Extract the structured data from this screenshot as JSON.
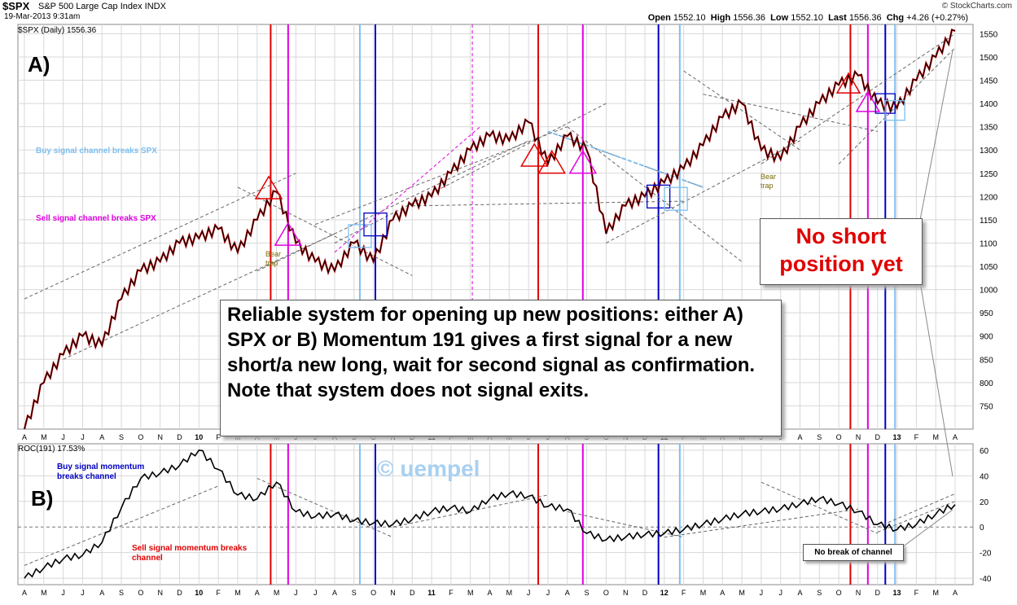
{
  "header": {
    "symbol": "$SPX",
    "description": "S&P 500 Large Cap Index  INDX",
    "date": "19-Mar-2013 9:31am",
    "open_label": "Open",
    "open": "1552.10",
    "high_label": "High",
    "high": "1556.36",
    "low_label": "Low",
    "low": "1552.10",
    "last_label": "Last",
    "last": "1556.36",
    "chg_label": "Chg",
    "chg": "+4.26 (+0.27%)",
    "brand": "© StockCharts.com"
  },
  "annotations": {
    "panel_a": "A)",
    "panel_b": "B)",
    "buy_channel": "Buy signal channel breaks SPX",
    "sell_channel": "Sell signal channel breaks SPX",
    "bear_trap_1": "Bear trap",
    "bear_trap_2": "Bear trap",
    "buy_momentum": "Buy signal momentum breaks channel",
    "sell_momentum": "Sell signal momentum breaks channel",
    "watermark": "© uempel",
    "main_box": "Reliable system for opening up new positions: either A) SPX or B) Momentum 191 gives a first signal for a new short/a new long, wait for second signal as confirmation. Note that system does not signal exits.",
    "short_box": "No short position yet",
    "no_break": "No break of channel"
  },
  "colors": {
    "red": "#e00000",
    "magenta": "#e000e0",
    "light_blue": "#7fbfef",
    "dark_blue": "#0000c0",
    "grid": "#d8d8d8",
    "price_up": "#000000",
    "price_down": "#c00000"
  },
  "chart_data": [
    {
      "type": "line",
      "title": "$SPX (Daily) 1556.36",
      "ylim": [
        700,
        1570
      ],
      "y_ticks": [
        750,
        800,
        850,
        900,
        950,
        1000,
        1050,
        1100,
        1150,
        1200,
        1250,
        1300,
        1350,
        1400,
        1450,
        1500,
        1550
      ],
      "x_labels": [
        "A",
        "M",
        "J",
        "J",
        "A",
        "S",
        "O",
        "N",
        "D",
        "10",
        "F",
        "M",
        "A",
        "M",
        "J",
        "J",
        "A",
        "S",
        "O",
        "N",
        "D",
        "11",
        "F",
        "M",
        "A",
        "M",
        "J",
        "J",
        "A",
        "S",
        "O",
        "N",
        "D",
        "12",
        "F",
        "M",
        "A",
        "M",
        "J",
        "J",
        "A",
        "S",
        "O",
        "N",
        "D",
        "13",
        "F",
        "M",
        "A"
      ],
      "series": [
        {
          "name": "$SPX",
          "x": [
            "2009-03",
            "2009-04",
            "2009-05",
            "2009-06",
            "2009-07",
            "2009-08",
            "2009-09",
            "2009-10",
            "2009-11",
            "2009-12",
            "2010-01",
            "2010-02",
            "2010-03",
            "2010-04",
            "2010-05",
            "2010-06",
            "2010-07",
            "2010-08",
            "2010-09",
            "2010-10",
            "2010-11",
            "2010-12",
            "2011-01",
            "2011-02",
            "2011-03",
            "2011-04",
            "2011-05",
            "2011-06",
            "2011-07",
            "2011-08",
            "2011-09",
            "2011-10",
            "2011-11",
            "2011-12",
            "2012-01",
            "2012-02",
            "2012-03",
            "2012-04",
            "2012-05",
            "2012-06",
            "2012-07",
            "2012-08",
            "2012-09",
            "2012-10",
            "2012-11",
            "2012-12",
            "2013-01",
            "2013-02",
            "2013-03"
          ],
          "values": [
            700,
            800,
            860,
            900,
            880,
            980,
            1040,
            1060,
            1100,
            1110,
            1130,
            1080,
            1150,
            1210,
            1100,
            1060,
            1040,
            1100,
            1060,
            1150,
            1180,
            1200,
            1250,
            1300,
            1330,
            1320,
            1360,
            1270,
            1330,
            1300,
            1120,
            1180,
            1200,
            1230,
            1260,
            1310,
            1370,
            1400,
            1300,
            1280,
            1350,
            1400,
            1440,
            1460,
            1400,
            1390,
            1450,
            1500,
            1556
          ]
        }
      ]
    },
    {
      "type": "line",
      "title": "ROC(191) 17.53%",
      "ylim": [
        -45,
        65
      ],
      "y_ticks": [
        -40,
        -20,
        0,
        20,
        40,
        60
      ],
      "series": [
        {
          "name": "ROC(191)",
          "x": [
            "2009-03",
            "2009-04",
            "2009-05",
            "2009-06",
            "2009-07",
            "2009-08",
            "2009-09",
            "2009-10",
            "2009-11",
            "2009-12",
            "2010-01",
            "2010-02",
            "2010-03",
            "2010-04",
            "2010-05",
            "2010-06",
            "2010-07",
            "2010-08",
            "2010-09",
            "2010-10",
            "2010-11",
            "2010-12",
            "2011-01",
            "2011-02",
            "2011-03",
            "2011-04",
            "2011-05",
            "2011-06",
            "2011-07",
            "2011-08",
            "2011-09",
            "2011-10",
            "2011-11",
            "2011-12",
            "2012-01",
            "2012-02",
            "2012-03",
            "2012-04",
            "2012-05",
            "2012-06",
            "2012-07",
            "2012-08",
            "2012-09",
            "2012-10",
            "2012-11",
            "2012-12",
            "2013-01",
            "2013-02",
            "2013-03"
          ],
          "values": [
            -40,
            -32,
            -25,
            -22,
            -12,
            15,
            38,
            42,
            48,
            60,
            45,
            25,
            22,
            35,
            12,
            8,
            10,
            5,
            3,
            2,
            6,
            12,
            15,
            12,
            22,
            26,
            24,
            16,
            14,
            -5,
            -10,
            -8,
            -6,
            -5,
            -2,
            2,
            6,
            10,
            12,
            14,
            18,
            22,
            18,
            12,
            2,
            -2,
            2,
            10,
            17.53
          ]
        }
      ]
    }
  ]
}
